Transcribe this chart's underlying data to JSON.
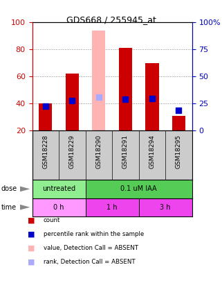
{
  "title": "GDS668 / 255945_at",
  "samples": [
    "GSM18228",
    "GSM18229",
    "GSM18290",
    "GSM18291",
    "GSM18294",
    "GSM18295"
  ],
  "bar_heights": [
    40,
    62,
    94,
    81,
    70,
    31
  ],
  "bar_colors": [
    "#cc0000",
    "#cc0000",
    "#ffb3b3",
    "#cc0000",
    "#cc0000",
    "#cc0000"
  ],
  "rank_values": [
    38,
    42,
    45,
    43,
    44,
    35
  ],
  "rank_colors": [
    "#0000cc",
    "#0000cc",
    "#aaaaff",
    "#0000cc",
    "#0000cc",
    "#0000cc"
  ],
  "bar_bottom": 20,
  "ylim_left": [
    20,
    100
  ],
  "yticks_left": [
    20,
    40,
    60,
    80,
    100
  ],
  "yticks_right": [
    0,
    25,
    50,
    75,
    100
  ],
  "ytick_labels_right": [
    "0",
    "25",
    "50",
    "75",
    "100%"
  ],
  "dose_groups": [
    {
      "label": "untreated",
      "start": 0,
      "end": 2,
      "color": "#90ee90"
    },
    {
      "label": "0.1 uM IAA",
      "start": 2,
      "end": 6,
      "color": "#55cc55"
    }
  ],
  "time_groups": [
    {
      "label": "0 h",
      "start": 0,
      "end": 2,
      "color": "#ff99ff"
    },
    {
      "label": "1 h",
      "start": 2,
      "end": 4,
      "color": "#ee44ee"
    },
    {
      "label": "3 h",
      "start": 4,
      "end": 6,
      "color": "#ee44ee"
    }
  ],
  "legend_items": [
    {
      "label": "count",
      "color": "#cc0000"
    },
    {
      "label": "percentile rank within the sample",
      "color": "#0000cc"
    },
    {
      "label": "value, Detection Call = ABSENT",
      "color": "#ffb3b3"
    },
    {
      "label": "rank, Detection Call = ABSENT",
      "color": "#aaaaff"
    }
  ],
  "bar_width": 0.5,
  "rank_marker_size": 6,
  "bg_color": "#ffffff",
  "grid_color": "#888888",
  "label_color_left": "#cc0000",
  "label_color_right": "#0000bb",
  "sample_bg": "#cccccc"
}
